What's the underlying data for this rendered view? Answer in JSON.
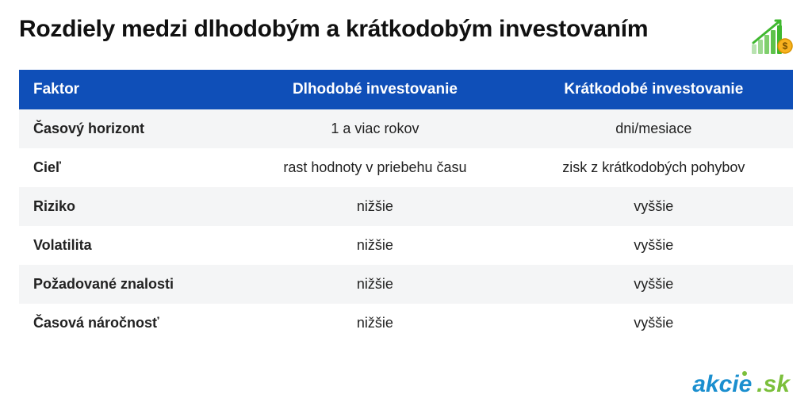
{
  "title": "Rozdiely medzi dlhodobým a krátkodobým investovaním",
  "table": {
    "type": "table",
    "header": {
      "bg": "#0f4fb8",
      "fg": "#ffffff",
      "fontsize_pt": 15,
      "labels": {
        "factor": "Faktor",
        "long": "Dlhodobé investovanie",
        "short": "Krátkodobé investovanie"
      }
    },
    "columns": [
      {
        "key": "factor",
        "width_pct": 28,
        "align": "left",
        "bold": true
      },
      {
        "key": "long",
        "width_pct": 36,
        "align": "center",
        "bold": false
      },
      {
        "key": "short",
        "width_pct": 36,
        "align": "center",
        "bold": false
      }
    ],
    "row_colors": {
      "even": "#f4f5f6",
      "odd": "#ffffff"
    },
    "body_fontsize_pt": 14,
    "rows": [
      {
        "factor": "Časový horizont",
        "long": "1 a viac rokov",
        "short": "dni/mesiace"
      },
      {
        "factor": "Cieľ",
        "long": "rast hodnoty v priebehu času",
        "short": "zisk z krátkodobých pohybov"
      },
      {
        "factor": "Riziko",
        "long": "nižšie",
        "short": "vyššie"
      },
      {
        "factor": "Volatilita",
        "long": "nižšie",
        "short": "vyššie"
      },
      {
        "factor": "Požadované znalosti",
        "long": "nižšie",
        "short": "vyššie"
      },
      {
        "factor": "Časová náročnosť",
        "long": "nižšie",
        "short": "vyššie"
      }
    ]
  },
  "header_icon": {
    "bar_colors": [
      "#b8e2b0",
      "#9dd98f",
      "#7fcf6c",
      "#5ec24a",
      "#3fb82f"
    ],
    "arrow_color": "#3fb82f",
    "coin_fill": "#f8b21f",
    "coin_stroke": "#d89300",
    "dollar_color": "#7a5200"
  },
  "logo": {
    "part1": "akcie",
    "part2": ".sk",
    "color1": "#1b8fcf",
    "color2": "#7bbf3b",
    "fontsize_pt": 22
  },
  "palette": {
    "text": "#1a1a1a",
    "background": "#ffffff"
  }
}
